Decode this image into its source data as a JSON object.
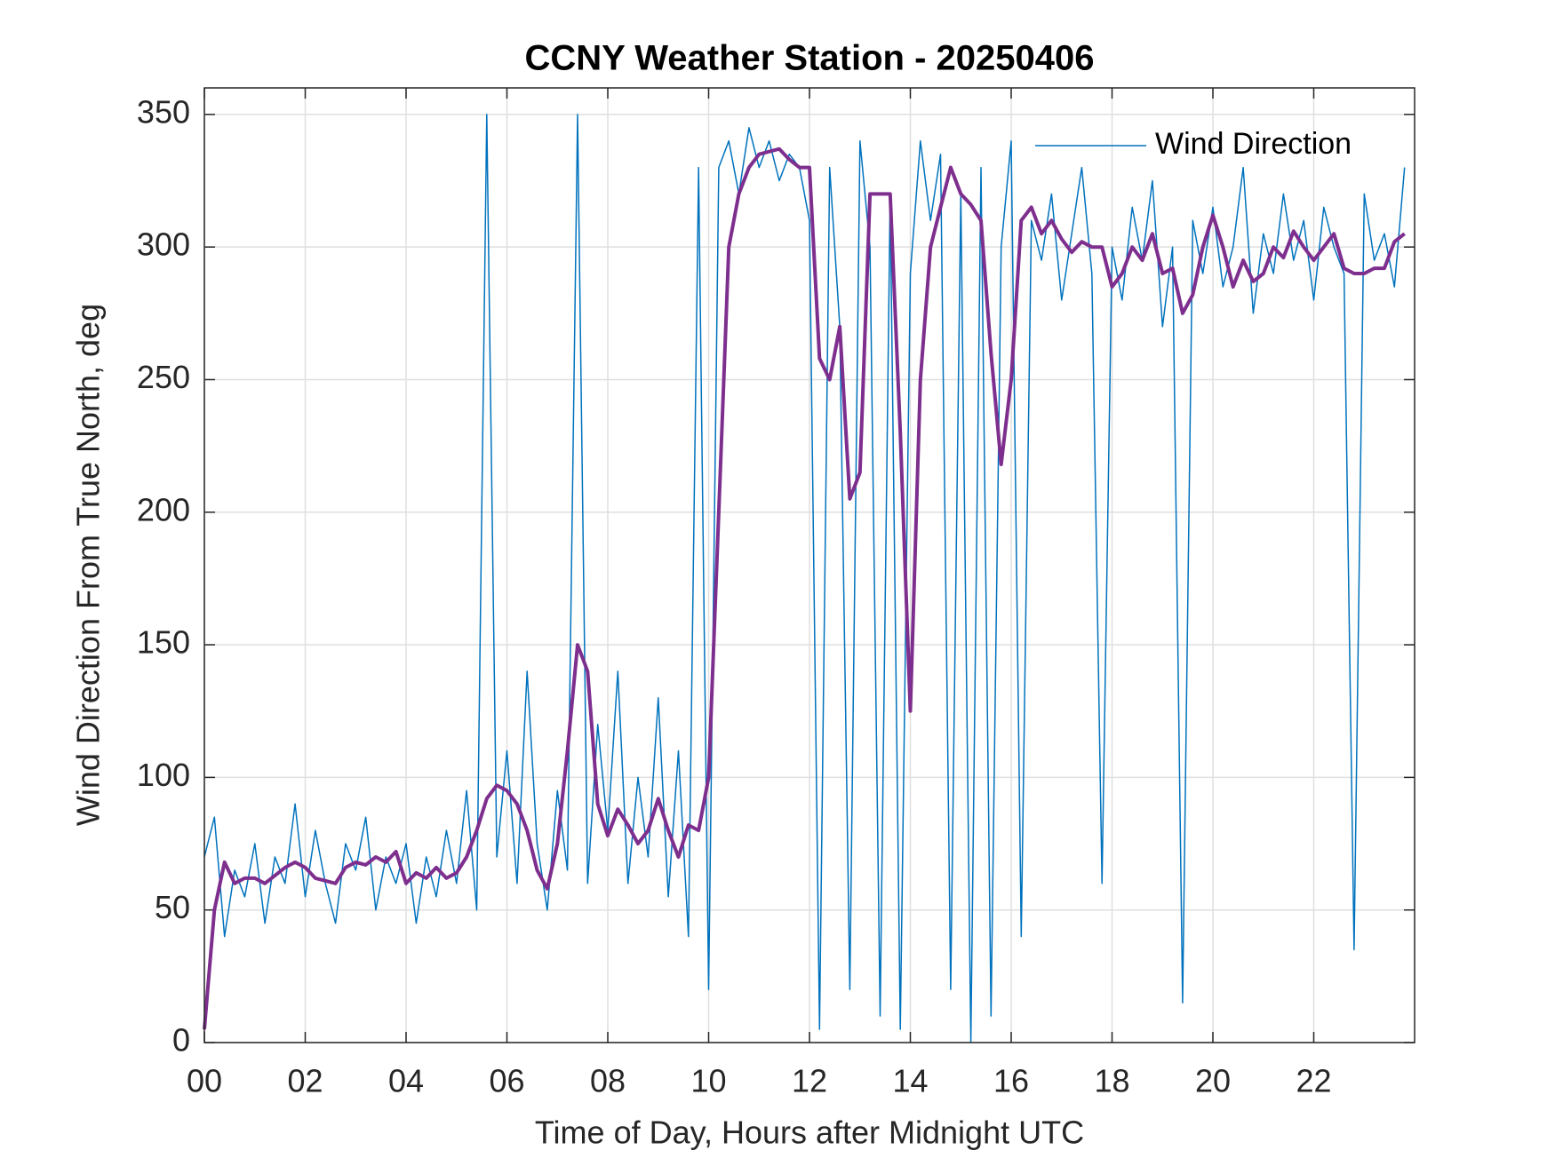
{
  "chart_data": {
    "type": "line",
    "title": "CCNY Weather Station - 20250406",
    "xlabel": "Time of Day, Hours after Midnight UTC",
    "ylabel": "Wind Direction From True North, deg",
    "x": [
      0,
      0.2,
      0.4,
      0.6,
      0.8,
      1,
      1.2,
      1.4,
      1.6,
      1.8,
      2,
      2.2,
      2.4,
      2.6,
      2.8,
      3,
      3.2,
      3.4,
      3.6,
      3.8,
      4,
      4.2,
      4.4,
      4.6,
      4.8,
      5,
      5.2,
      5.4,
      5.6,
      5.8,
      6,
      6.2,
      6.4,
      6.6,
      6.8,
      7,
      7.2,
      7.4,
      7.6,
      7.8,
      8,
      8.2,
      8.4,
      8.6,
      8.8,
      9,
      9.2,
      9.4,
      9.6,
      9.8,
      10,
      10.2,
      10.4,
      10.6,
      10.8,
      11,
      11.2,
      11.4,
      11.6,
      11.8,
      12,
      12.2,
      12.4,
      12.6,
      12.8,
      13,
      13.2,
      13.4,
      13.6,
      13.8,
      14,
      14.2,
      14.4,
      14.6,
      14.8,
      15,
      15.2,
      15.4,
      15.6,
      15.8,
      16,
      16.2,
      16.4,
      16.6,
      16.8,
      17,
      17.2,
      17.4,
      17.6,
      17.8,
      18,
      18.2,
      18.4,
      18.6,
      18.8,
      19,
      19.2,
      19.4,
      19.6,
      19.8,
      20,
      20.2,
      20.4,
      20.6,
      20.8,
      21,
      21.2,
      21.4,
      21.6,
      21.8,
      22,
      22.2,
      22.4,
      22.6,
      22.8,
      23,
      23.2,
      23.4,
      23.6,
      23.8
    ],
    "series": [
      {
        "name": "Wind Direction",
        "color": "#0072bd",
        "width": 1.5,
        "values": [
          70,
          85,
          40,
          65,
          55,
          75,
          45,
          70,
          60,
          90,
          55,
          80,
          60,
          45,
          75,
          65,
          85,
          50,
          70,
          60,
          75,
          45,
          70,
          55,
          80,
          60,
          95,
          50,
          350,
          70,
          110,
          60,
          140,
          75,
          50,
          95,
          65,
          350,
          60,
          120,
          80,
          140,
          60,
          100,
          70,
          130,
          55,
          110,
          40,
          330,
          20,
          330,
          340,
          320,
          345,
          330,
          340,
          325,
          335,
          330,
          310,
          5,
          330,
          270,
          20,
          340,
          300,
          10,
          320,
          5,
          290,
          340,
          310,
          335,
          20,
          320,
          0,
          330,
          10,
          300,
          340,
          40,
          310,
          295,
          320,
          280,
          305,
          330,
          290,
          60,
          300,
          280,
          315,
          295,
          325,
          270,
          300,
          15,
          310,
          290,
          315,
          285,
          300,
          330,
          275,
          305,
          290,
          320,
          295,
          310,
          280,
          315,
          300,
          290,
          35,
          320,
          295,
          305,
          285,
          330
        ]
      },
      {
        "color": "#7e2f8e",
        "width": 4,
        "values": [
          5,
          50,
          68,
          60,
          62,
          62,
          60,
          63,
          66,
          68,
          66,
          62,
          61,
          60,
          66,
          68,
          67,
          70,
          68,
          72,
          60,
          64,
          62,
          66,
          62,
          64,
          70,
          80,
          92,
          97,
          95,
          90,
          80,
          65,
          58,
          75,
          110,
          150,
          140,
          90,
          78,
          88,
          82,
          75,
          80,
          92,
          80,
          70,
          82,
          80,
          100,
          200,
          300,
          320,
          330,
          335,
          336,
          337,
          333,
          330,
          330,
          258,
          250,
          270,
          205,
          215,
          320,
          320,
          320,
          230,
          125,
          250,
          300,
          315,
          330,
          320,
          316,
          310,
          260,
          218,
          250,
          310,
          315,
          305,
          310,
          303,
          298,
          302,
          300,
          300,
          285,
          290,
          300,
          295,
          305,
          290,
          292,
          275,
          282,
          300,
          312,
          300,
          285,
          295,
          287,
          290,
          300,
          296,
          306,
          300,
          295,
          300,
          305,
          292,
          290,
          290,
          292,
          292,
          302,
          305
        ]
      }
    ],
    "xlim": [
      0,
      24
    ],
    "xticks": [
      {
        "value": 0,
        "label": "00"
      },
      {
        "value": 2,
        "label": "02"
      },
      {
        "value": 4,
        "label": "04"
      },
      {
        "value": 6,
        "label": "06"
      },
      {
        "value": 8,
        "label": "08"
      },
      {
        "value": 10,
        "label": "10"
      },
      {
        "value": 12,
        "label": "12"
      },
      {
        "value": 14,
        "label": "14"
      },
      {
        "value": 16,
        "label": "16"
      },
      {
        "value": 18,
        "label": "18"
      },
      {
        "value": 20,
        "label": "20"
      },
      {
        "value": 22,
        "label": "22"
      }
    ],
    "ylim": [
      0,
      360
    ],
    "yticks": [
      0,
      50,
      100,
      150,
      200,
      250,
      300,
      350
    ],
    "grid": true,
    "legend": "upper-right"
  }
}
